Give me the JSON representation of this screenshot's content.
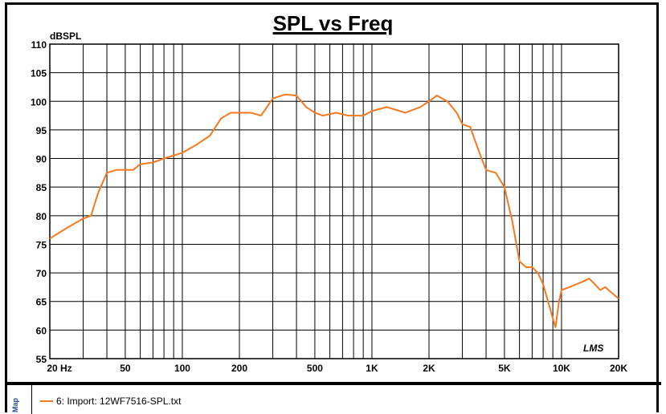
{
  "chart_data": {
    "type": "line",
    "title": "SPL vs Freq",
    "ylabel": "dBSPL",
    "xlabel": "",
    "xscale": "log",
    "xlim": [
      20,
      20000
    ],
    "ylim": [
      55,
      110
    ],
    "grid": true,
    "xticks": [
      {
        "v": 20,
        "l": "20  Hz"
      },
      {
        "v": 50,
        "l": "50"
      },
      {
        "v": 100,
        "l": "100"
      },
      {
        "v": 200,
        "l": "200"
      },
      {
        "v": 500,
        "l": "500"
      },
      {
        "v": 1000,
        "l": "1K"
      },
      {
        "v": 2000,
        "l": "2K"
      },
      {
        "v": 5000,
        "l": "5K"
      },
      {
        "v": 10000,
        "l": "10K"
      },
      {
        "v": 20000,
        "l": "20K"
      }
    ],
    "yticks": [
      55,
      60,
      65,
      70,
      75,
      80,
      85,
      90,
      95,
      100,
      105,
      110
    ],
    "series": [
      {
        "name": "6: Import: 12WF7516-SPL.txt",
        "color": "#f47a20",
        "x": [
          20,
          25,
          30,
          33,
          36,
          40,
          45,
          50,
          55,
          60,
          70,
          80,
          100,
          120,
          140,
          160,
          180,
          200,
          230,
          260,
          300,
          350,
          400,
          450,
          500,
          550,
          650,
          750,
          900,
          1000,
          1200,
          1500,
          1800,
          2000,
          2200,
          2500,
          2800,
          3000,
          3300,
          3600,
          4000,
          4500,
          5000,
          5500,
          6000,
          6500,
          7000,
          7500,
          8000,
          9000,
          9300,
          9700,
          10000,
          11000,
          13000,
          14000,
          15000,
          16000,
          17000,
          20000
        ],
        "y": [
          76,
          78,
          79.5,
          80,
          84,
          87.5,
          88,
          88,
          88,
          89,
          89.3,
          90,
          91,
          92.5,
          94,
          97,
          98,
          98,
          98,
          97.5,
          100.5,
          101.2,
          101,
          99,
          98,
          97.5,
          98,
          97.5,
          97.5,
          98.3,
          99,
          98,
          99,
          100,
          101,
          100,
          98,
          96,
          95.5,
          92,
          88,
          87.5,
          85,
          79,
          72,
          71,
          71,
          70,
          68,
          62,
          60.5,
          65,
          67,
          67.5,
          68.5,
          69,
          68,
          67,
          67.5,
          65.5
        ]
      }
    ]
  },
  "watermark": "LMS",
  "legend": {
    "side_label": "Map"
  }
}
